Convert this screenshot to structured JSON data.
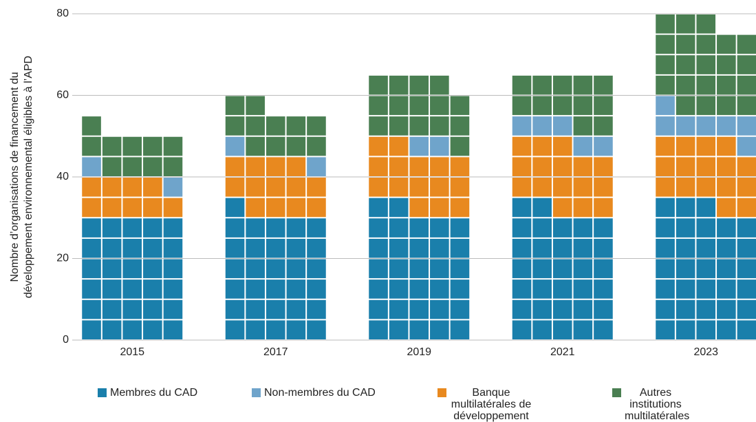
{
  "chart_data": {
    "type": "waffle-stacked",
    "ylabel": [
      "Nombre d’organisations de financement du",
      "développement environnemental éligibles à l’APD"
    ],
    "categories": [
      "2015",
      "2017",
      "2019",
      "2021",
      "2023"
    ],
    "series": [
      {
        "name": "Membres du CAD",
        "color": "#1a7fab",
        "values": [
          30,
          31,
          32,
          32,
          33
        ]
      },
      {
        "name": "Non-membres du CAD",
        "color": "#6fa4cb",
        "values": [
          2,
          2,
          2,
          5,
          7
        ]
      },
      {
        "name": "Banque multilatérales de développement",
        "color": "#e8891f",
        "values": [
          9,
          13,
          15,
          16,
          16
        ]
      },
      {
        "name": "Autres institutions multilatérales",
        "color": "#4a7f52",
        "values": [
          10,
          11,
          15,
          12,
          22
        ]
      }
    ],
    "stack_order": [
      0,
      2,
      1,
      3
    ],
    "columns": 5,
    "ylim": [
      0,
      80
    ],
    "yticks": [
      0,
      20,
      40,
      60,
      80
    ],
    "grid": true
  }
}
